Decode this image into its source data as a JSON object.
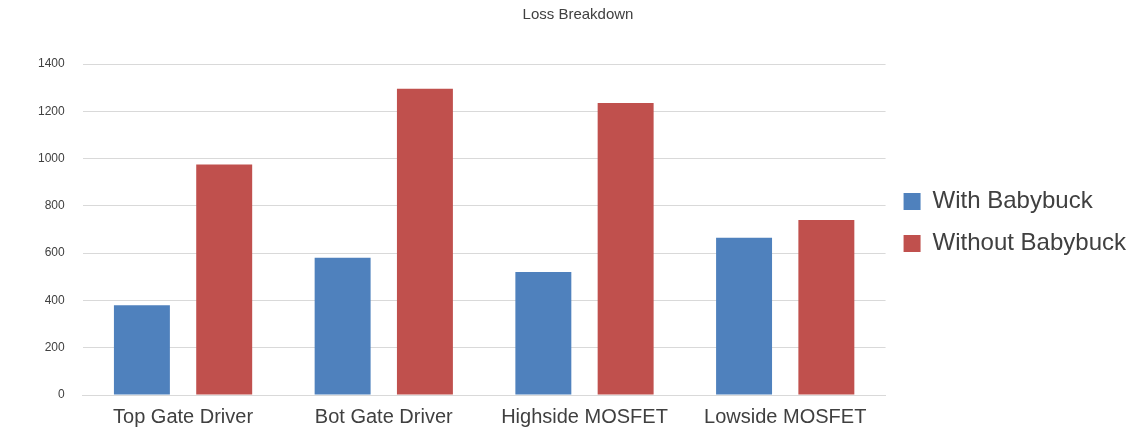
{
  "chart_data": {
    "type": "bar",
    "title": "Loss Breakdown",
    "categories": [
      "Top Gate Driver",
      "Bot Gate Driver",
      "Highside MOSFET",
      "Lowside MOSFET"
    ],
    "series": [
      {
        "name": "With Babybuck",
        "color": "#4f81bd",
        "values": [
          380,
          580,
          520,
          665
        ]
      },
      {
        "name": "Without Babybuck",
        "color": "#c0504d",
        "values": [
          975,
          1295,
          1235,
          740
        ]
      }
    ],
    "ylim": [
      0,
      1400
    ],
    "yticks": [
      0,
      200,
      400,
      600,
      800,
      1000,
      1200,
      1400
    ],
    "grid": "y",
    "legend": "right"
  }
}
